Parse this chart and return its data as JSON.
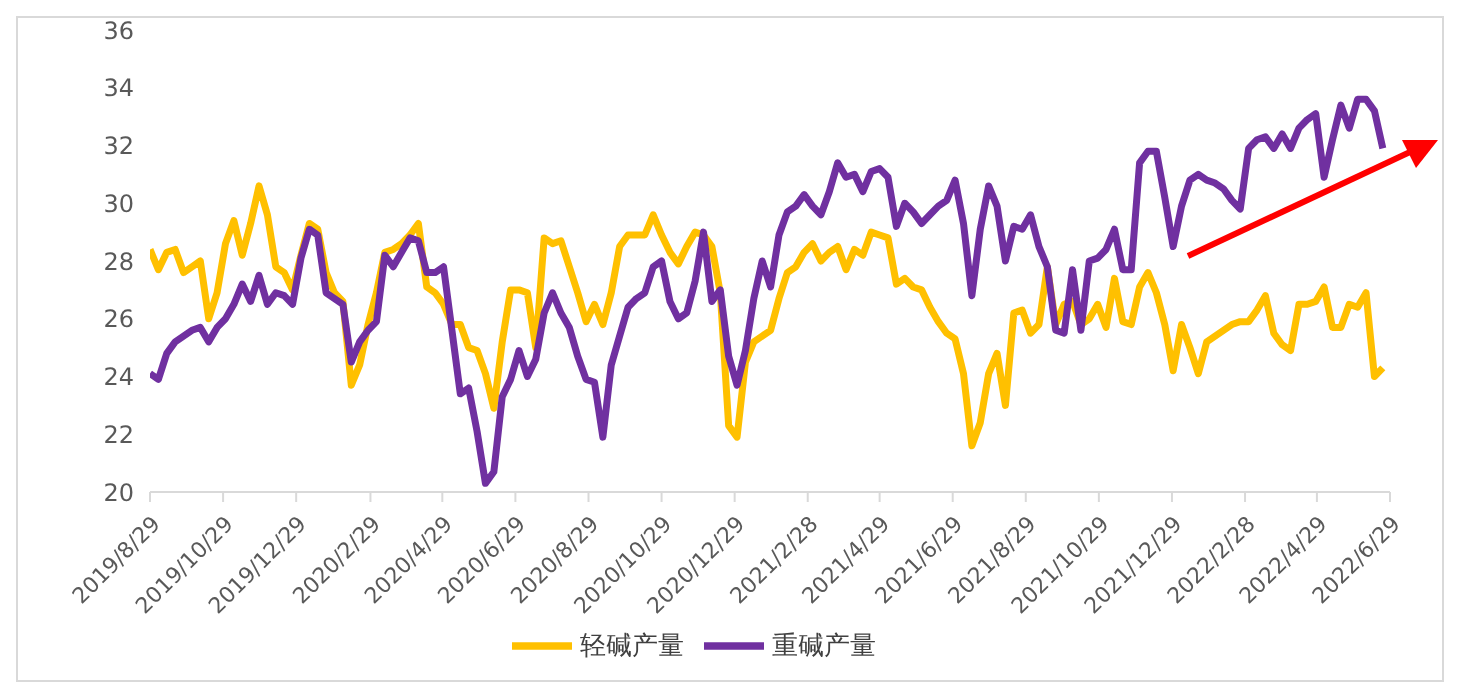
{
  "chart_data": {
    "type": "line",
    "legend": "bottom",
    "ylim": [
      20,
      36
    ],
    "yticks": [
      20,
      22,
      24,
      26,
      28,
      30,
      32,
      34,
      36
    ],
    "xlim": [
      "2019-08-29",
      "2022-06-29"
    ],
    "xticks": [
      {
        "value": "2019-08-29",
        "label": "2019/8/29"
      },
      {
        "value": "2019-10-29",
        "label": "2019/10/29"
      },
      {
        "value": "2019-12-29",
        "label": "2019/12/29"
      },
      {
        "value": "2020-02-29",
        "label": "2020/2/29"
      },
      {
        "value": "2020-04-29",
        "label": "2020/4/29"
      },
      {
        "value": "2020-06-29",
        "label": "2020/6/29"
      },
      {
        "value": "2020-08-29",
        "label": "2020/8/29"
      },
      {
        "value": "2020-10-29",
        "label": "2020/10/29"
      },
      {
        "value": "2020-12-29",
        "label": "2020/12/29"
      },
      {
        "value": "2021-02-28",
        "label": "2021/2/28"
      },
      {
        "value": "2021-04-29",
        "label": "2021/4/29"
      },
      {
        "value": "2021-06-29",
        "label": "2021/6/29"
      },
      {
        "value": "2021-08-29",
        "label": "2021/8/29"
      },
      {
        "value": "2021-10-29",
        "label": "2021/10/29"
      },
      {
        "value": "2021-12-29",
        "label": "2021/12/29"
      },
      {
        "value": "2022-02-28",
        "label": "2022/2/28"
      },
      {
        "value": "2022-04-29",
        "label": "2022/4/29"
      },
      {
        "value": "2022-06-29",
        "label": "2022/6/29"
      }
    ],
    "x": [
      "2019-08-29",
      "2019-09-05",
      "2019-09-12",
      "2019-09-19",
      "2019-09-26",
      "2019-10-03",
      "2019-10-10",
      "2019-10-17",
      "2019-10-24",
      "2019-10-31",
      "2019-11-07",
      "2019-11-14",
      "2019-11-21",
      "2019-11-28",
      "2019-12-05",
      "2019-12-12",
      "2019-12-19",
      "2019-12-26",
      "2020-01-02",
      "2020-01-09",
      "2020-01-16",
      "2020-01-23",
      "2020-01-30",
      "2020-02-06",
      "2020-02-13",
      "2020-02-20",
      "2020-02-27",
      "2020-03-05",
      "2020-03-12",
      "2020-03-19",
      "2020-03-26",
      "2020-04-02",
      "2020-04-09",
      "2020-04-16",
      "2020-04-23",
      "2020-04-30",
      "2020-05-07",
      "2020-05-14",
      "2020-05-21",
      "2020-05-28",
      "2020-06-04",
      "2020-06-11",
      "2020-06-18",
      "2020-06-25",
      "2020-07-02",
      "2020-07-09",
      "2020-07-16",
      "2020-07-23",
      "2020-07-30",
      "2020-08-06",
      "2020-08-13",
      "2020-08-20",
      "2020-08-27",
      "2020-09-03",
      "2020-09-10",
      "2020-09-17",
      "2020-09-24",
      "2020-10-01",
      "2020-10-08",
      "2020-10-15",
      "2020-10-22",
      "2020-10-29",
      "2020-11-05",
      "2020-11-12",
      "2020-11-19",
      "2020-11-26",
      "2020-12-03",
      "2020-12-10",
      "2020-12-17",
      "2020-12-24",
      "2020-12-31",
      "2021-01-07",
      "2021-01-14",
      "2021-01-21",
      "2021-01-28",
      "2021-02-04",
      "2021-02-11",
      "2021-02-18",
      "2021-02-25",
      "2021-03-04",
      "2021-03-11",
      "2021-03-18",
      "2021-03-25",
      "2021-04-01",
      "2021-04-08",
      "2021-04-15",
      "2021-04-22",
      "2021-04-29",
      "2021-05-06",
      "2021-05-13",
      "2021-05-20",
      "2021-05-27",
      "2021-06-03",
      "2021-06-10",
      "2021-06-17",
      "2021-06-24",
      "2021-07-01",
      "2021-07-08",
      "2021-07-15",
      "2021-07-22",
      "2021-07-29",
      "2021-08-05",
      "2021-08-12",
      "2021-08-19",
      "2021-08-26",
      "2021-09-02",
      "2021-09-09",
      "2021-09-16",
      "2021-09-23",
      "2021-09-30",
      "2021-10-07",
      "2021-10-14",
      "2021-10-21",
      "2021-10-28",
      "2021-11-04",
      "2021-11-11",
      "2021-11-18",
      "2021-11-25",
      "2021-12-02",
      "2021-12-09",
      "2021-12-16",
      "2021-12-23",
      "2021-12-30",
      "2022-01-06",
      "2022-01-13",
      "2022-01-20",
      "2022-01-27",
      "2022-02-03",
      "2022-02-10",
      "2022-02-17",
      "2022-02-24",
      "2022-03-03",
      "2022-03-10",
      "2022-03-17",
      "2022-03-24",
      "2022-03-31",
      "2022-04-07",
      "2022-04-14",
      "2022-04-21",
      "2022-04-28",
      "2022-05-05",
      "2022-05-12",
      "2022-05-19",
      "2022-05-26",
      "2022-06-02",
      "2022-06-09",
      "2022-06-16",
      "2022-06-23"
    ],
    "series": [
      {
        "name": "轻碱产量",
        "color": "#ffc000",
        "values": [
          28.4,
          27.7,
          28.3,
          28.4,
          27.6,
          27.8,
          28.0,
          26.0,
          26.9,
          28.6,
          29.4,
          28.2,
          29.3,
          30.6,
          29.6,
          27.8,
          27.6,
          27.0,
          28.2,
          29.3,
          29.1,
          27.6,
          26.9,
          26.6,
          23.7,
          24.4,
          25.8,
          26.9,
          28.3,
          28.4,
          28.6,
          28.9,
          29.3,
          27.1,
          26.9,
          26.5,
          25.8,
          25.8,
          25.0,
          24.9,
          24.1,
          22.9,
          25.2,
          27.0,
          27.0,
          26.9,
          25.0,
          28.8,
          28.6,
          28.7,
          27.8,
          26.9,
          25.9,
          26.5,
          25.8,
          26.9,
          28.5,
          28.9,
          28.9,
          28.9,
          29.6,
          28.9,
          28.3,
          27.9,
          28.5,
          29.0,
          28.9,
          28.5,
          26.9,
          22.3,
          21.9,
          24.5,
          25.2,
          25.4,
          25.6,
          26.7,
          27.6,
          27.8,
          28.3,
          28.6,
          28.0,
          28.3,
          28.5,
          27.7,
          28.4,
          28.2,
          29.0,
          28.9,
          28.8,
          27.2,
          27.4,
          27.1,
          27.0,
          26.4,
          25.9,
          25.5,
          25.3,
          24.1,
          21.6,
          22.4,
          24.1,
          24.8,
          23.0,
          26.2,
          26.3,
          25.5,
          25.8,
          27.8,
          25.8,
          26.5,
          26.6,
          25.8,
          26.0,
          26.5,
          25.7,
          27.4,
          25.9,
          25.8,
          27.1,
          27.6,
          26.9,
          25.8,
          24.2,
          25.8,
          25.0,
          24.1,
          25.2,
          25.4,
          25.6,
          25.8,
          25.9,
          25.9,
          26.3,
          26.8,
          25.5,
          25.1,
          24.9,
          26.5,
          26.5,
          26.6,
          27.1,
          25.7,
          25.7,
          26.5,
          26.4,
          26.9,
          24.0,
          24.3
        ]
      },
      {
        "name": "重碱产量",
        "color": "#7030a0",
        "values": [
          24.1,
          23.9,
          24.8,
          25.2,
          25.4,
          25.6,
          25.7,
          25.2,
          25.7,
          26.0,
          26.5,
          27.2,
          26.6,
          27.5,
          26.5,
          26.9,
          26.8,
          26.5,
          28.1,
          29.1,
          28.9,
          26.9,
          26.7,
          26.5,
          24.5,
          25.2,
          25.6,
          25.9,
          28.2,
          27.8,
          28.3,
          28.8,
          28.7,
          27.6,
          27.6,
          27.8,
          25.6,
          23.4,
          23.6,
          22.1,
          20.3,
          20.7,
          23.3,
          23.9,
          24.9,
          24.0,
          24.6,
          26.2,
          26.9,
          26.2,
          25.7,
          24.7,
          23.9,
          23.8,
          21.9,
          24.4,
          25.4,
          26.4,
          26.7,
          26.9,
          27.8,
          28.0,
          26.6,
          26.0,
          26.2,
          27.3,
          29.0,
          26.6,
          27.0,
          24.7,
          23.7,
          24.9,
          26.7,
          28.0,
          27.1,
          28.9,
          29.7,
          29.9,
          30.3,
          29.9,
          29.6,
          30.4,
          31.4,
          30.9,
          31.0,
          30.4,
          31.1,
          31.2,
          30.9,
          29.2,
          30.0,
          29.7,
          29.3,
          29.6,
          29.9,
          30.1,
          30.8,
          29.3,
          26.8,
          29.1,
          30.6,
          29.9,
          28.0,
          29.2,
          29.1,
          29.6,
          28.5,
          27.8,
          25.6,
          25.5,
          27.7,
          25.6,
          28.0,
          28.1,
          28.4,
          29.1,
          27.7,
          27.7,
          31.4,
          31.8,
          31.8,
          30.2,
          28.5,
          29.9,
          30.8,
          31.0,
          30.8,
          30.7,
          30.5,
          30.1,
          29.8,
          31.9,
          32.2,
          32.3,
          31.9,
          32.4,
          31.9,
          32.6,
          32.9,
          33.1,
          30.9,
          32.2,
          33.4,
          32.6,
          33.6,
          33.6,
          33.2,
          31.9
        ]
      }
    ]
  }
}
